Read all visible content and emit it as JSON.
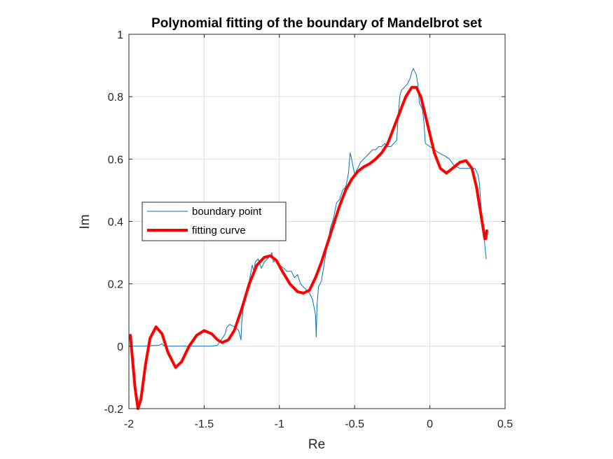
{
  "chart_data": {
    "type": "line",
    "title": "Polynomial fitting of the boundary of Mandelbrot set",
    "xlabel": "Re",
    "ylabel": "Im",
    "xlim": [
      -2,
      0.5
    ],
    "ylim": [
      -0.2,
      1
    ],
    "xticks": [
      "-2",
      "-1.5",
      "-1",
      "-0.5",
      "0",
      "0.5"
    ],
    "yticks": [
      "-0.2",
      "0",
      "0.2",
      "0.4",
      "0.6",
      "0.8",
      "1"
    ],
    "grid": true,
    "legend_position": "middle-left",
    "series": [
      {
        "name": "boundary point",
        "color": "#0072BD",
        "style": "thin",
        "points": [
          [
            -1.99,
            0.0
          ],
          [
            -1.95,
            0.0
          ],
          [
            -1.9,
            0.0
          ],
          [
            -1.85,
            0.002
          ],
          [
            -1.8,
            0.003
          ],
          [
            -1.78,
            0.008
          ],
          [
            -1.77,
            0.002
          ],
          [
            -1.75,
            0.0
          ],
          [
            -1.7,
            0.0
          ],
          [
            -1.6,
            0.0
          ],
          [
            -1.5,
            0.0
          ],
          [
            -1.45,
            0.0
          ],
          [
            -1.41,
            0.003
          ],
          [
            -1.4,
            0.012
          ],
          [
            -1.38,
            0.025
          ],
          [
            -1.36,
            0.04
          ],
          [
            -1.35,
            0.06
          ],
          [
            -1.33,
            0.07
          ],
          [
            -1.31,
            0.065
          ],
          [
            -1.29,
            0.06
          ],
          [
            -1.27,
            0.05
          ],
          [
            -1.26,
            0.03
          ],
          [
            -1.255,
            0.02
          ],
          [
            -1.25,
            0.08
          ],
          [
            -1.24,
            0.12
          ],
          [
            -1.22,
            0.18
          ],
          [
            -1.2,
            0.21
          ],
          [
            -1.18,
            0.26
          ],
          [
            -1.17,
            0.24
          ],
          [
            -1.16,
            0.27
          ],
          [
            -1.14,
            0.28
          ],
          [
            -1.12,
            0.25
          ],
          [
            -1.1,
            0.27
          ],
          [
            -1.08,
            0.28
          ],
          [
            -1.06,
            0.29
          ],
          [
            -1.05,
            0.3
          ],
          [
            -1.04,
            0.27
          ],
          [
            -1.02,
            0.28
          ],
          [
            -1.0,
            0.26
          ],
          [
            -0.97,
            0.25
          ],
          [
            -0.95,
            0.24
          ],
          [
            -0.92,
            0.24
          ],
          [
            -0.9,
            0.22
          ],
          [
            -0.88,
            0.23
          ],
          [
            -0.86,
            0.2
          ],
          [
            -0.84,
            0.19
          ],
          [
            -0.82,
            0.18
          ],
          [
            -0.8,
            0.17
          ],
          [
            -0.78,
            0.15
          ],
          [
            -0.76,
            0.1
          ],
          [
            -0.755,
            0.03
          ],
          [
            -0.75,
            0.13
          ],
          [
            -0.74,
            0.19
          ],
          [
            -0.72,
            0.21
          ],
          [
            -0.7,
            0.27
          ],
          [
            -0.68,
            0.33
          ],
          [
            -0.66,
            0.38
          ],
          [
            -0.64,
            0.41
          ],
          [
            -0.62,
            0.46
          ],
          [
            -0.6,
            0.47
          ],
          [
            -0.58,
            0.5
          ],
          [
            -0.56,
            0.51
          ],
          [
            -0.55,
            0.53
          ],
          [
            -0.54,
            0.56
          ],
          [
            -0.53,
            0.62
          ],
          [
            -0.52,
            0.6
          ],
          [
            -0.5,
            0.55
          ],
          [
            -0.48,
            0.57
          ],
          [
            -0.46,
            0.59
          ],
          [
            -0.44,
            0.6
          ],
          [
            -0.42,
            0.61
          ],
          [
            -0.4,
            0.62
          ],
          [
            -0.38,
            0.63
          ],
          [
            -0.36,
            0.63
          ],
          [
            -0.34,
            0.64
          ],
          [
            -0.32,
            0.64
          ],
          [
            -0.3,
            0.65
          ],
          [
            -0.28,
            0.64
          ],
          [
            -0.26,
            0.64
          ],
          [
            -0.24,
            0.65
          ],
          [
            -0.22,
            0.66
          ],
          [
            -0.21,
            0.74
          ],
          [
            -0.2,
            0.8
          ],
          [
            -0.19,
            0.82
          ],
          [
            -0.17,
            0.83
          ],
          [
            -0.15,
            0.84
          ],
          [
            -0.13,
            0.86
          ],
          [
            -0.12,
            0.88
          ],
          [
            -0.11,
            0.89
          ],
          [
            -0.1,
            0.88
          ],
          [
            -0.09,
            0.87
          ],
          [
            -0.08,
            0.84
          ],
          [
            -0.07,
            0.78
          ],
          [
            -0.06,
            0.77
          ],
          [
            -0.05,
            0.76
          ],
          [
            -0.04,
            0.72
          ],
          [
            -0.03,
            0.65
          ],
          [
            0.0,
            0.64
          ],
          [
            0.03,
            0.63
          ],
          [
            0.06,
            0.62
          ],
          [
            0.1,
            0.61
          ],
          [
            0.13,
            0.6
          ],
          [
            0.16,
            0.58
          ],
          [
            0.2,
            0.57
          ],
          [
            0.24,
            0.57
          ],
          [
            0.27,
            0.57
          ],
          [
            0.3,
            0.57
          ],
          [
            0.32,
            0.55
          ],
          [
            0.33,
            0.52
          ],
          [
            0.34,
            0.45
          ],
          [
            0.345,
            0.41
          ],
          [
            0.35,
            0.4
          ],
          [
            0.36,
            0.35
          ],
          [
            0.37,
            0.3
          ],
          [
            0.375,
            0.28
          ]
        ]
      },
      {
        "name": "fitting curve",
        "color": "#FF0000",
        "style": "thick",
        "points": [
          [
            -1.99,
            0.035
          ],
          [
            -1.96,
            -0.13
          ],
          [
            -1.94,
            -0.2
          ],
          [
            -1.92,
            -0.17
          ],
          [
            -1.89,
            -0.06
          ],
          [
            -1.86,
            0.025
          ],
          [
            -1.82,
            0.062
          ],
          [
            -1.78,
            0.04
          ],
          [
            -1.74,
            -0.02
          ],
          [
            -1.69,
            -0.068
          ],
          [
            -1.65,
            -0.05
          ],
          [
            -1.6,
            0.0
          ],
          [
            -1.55,
            0.035
          ],
          [
            -1.5,
            0.05
          ],
          [
            -1.45,
            0.04
          ],
          [
            -1.41,
            0.02
          ],
          [
            -1.38,
            0.012
          ],
          [
            -1.34,
            0.02
          ],
          [
            -1.3,
            0.05
          ],
          [
            -1.25,
            0.12
          ],
          [
            -1.2,
            0.2
          ],
          [
            -1.15,
            0.26
          ],
          [
            -1.1,
            0.285
          ],
          [
            -1.06,
            0.29
          ],
          [
            -1.02,
            0.275
          ],
          [
            -0.98,
            0.24
          ],
          [
            -0.93,
            0.2
          ],
          [
            -0.88,
            0.175
          ],
          [
            -0.84,
            0.17
          ],
          [
            -0.8,
            0.18
          ],
          [
            -0.76,
            0.22
          ],
          [
            -0.72,
            0.27
          ],
          [
            -0.68,
            0.33
          ],
          [
            -0.64,
            0.39
          ],
          [
            -0.6,
            0.45
          ],
          [
            -0.56,
            0.5
          ],
          [
            -0.52,
            0.535
          ],
          [
            -0.48,
            0.56
          ],
          [
            -0.44,
            0.575
          ],
          [
            -0.4,
            0.585
          ],
          [
            -0.36,
            0.6
          ],
          [
            -0.32,
            0.62
          ],
          [
            -0.28,
            0.65
          ],
          [
            -0.24,
            0.7
          ],
          [
            -0.2,
            0.75
          ],
          [
            -0.16,
            0.8
          ],
          [
            -0.12,
            0.83
          ],
          [
            -0.09,
            0.83
          ],
          [
            -0.06,
            0.8
          ],
          [
            -0.03,
            0.74
          ],
          [
            0.0,
            0.68
          ],
          [
            0.03,
            0.62
          ],
          [
            0.07,
            0.57
          ],
          [
            0.11,
            0.555
          ],
          [
            0.15,
            0.57
          ],
          [
            0.2,
            0.59
          ],
          [
            0.24,
            0.595
          ],
          [
            0.28,
            0.57
          ],
          [
            0.31,
            0.51
          ],
          [
            0.33,
            0.45
          ],
          [
            0.35,
            0.39
          ],
          [
            0.365,
            0.345
          ],
          [
            0.372,
            0.345
          ],
          [
            0.378,
            0.37
          ]
        ]
      }
    ]
  }
}
